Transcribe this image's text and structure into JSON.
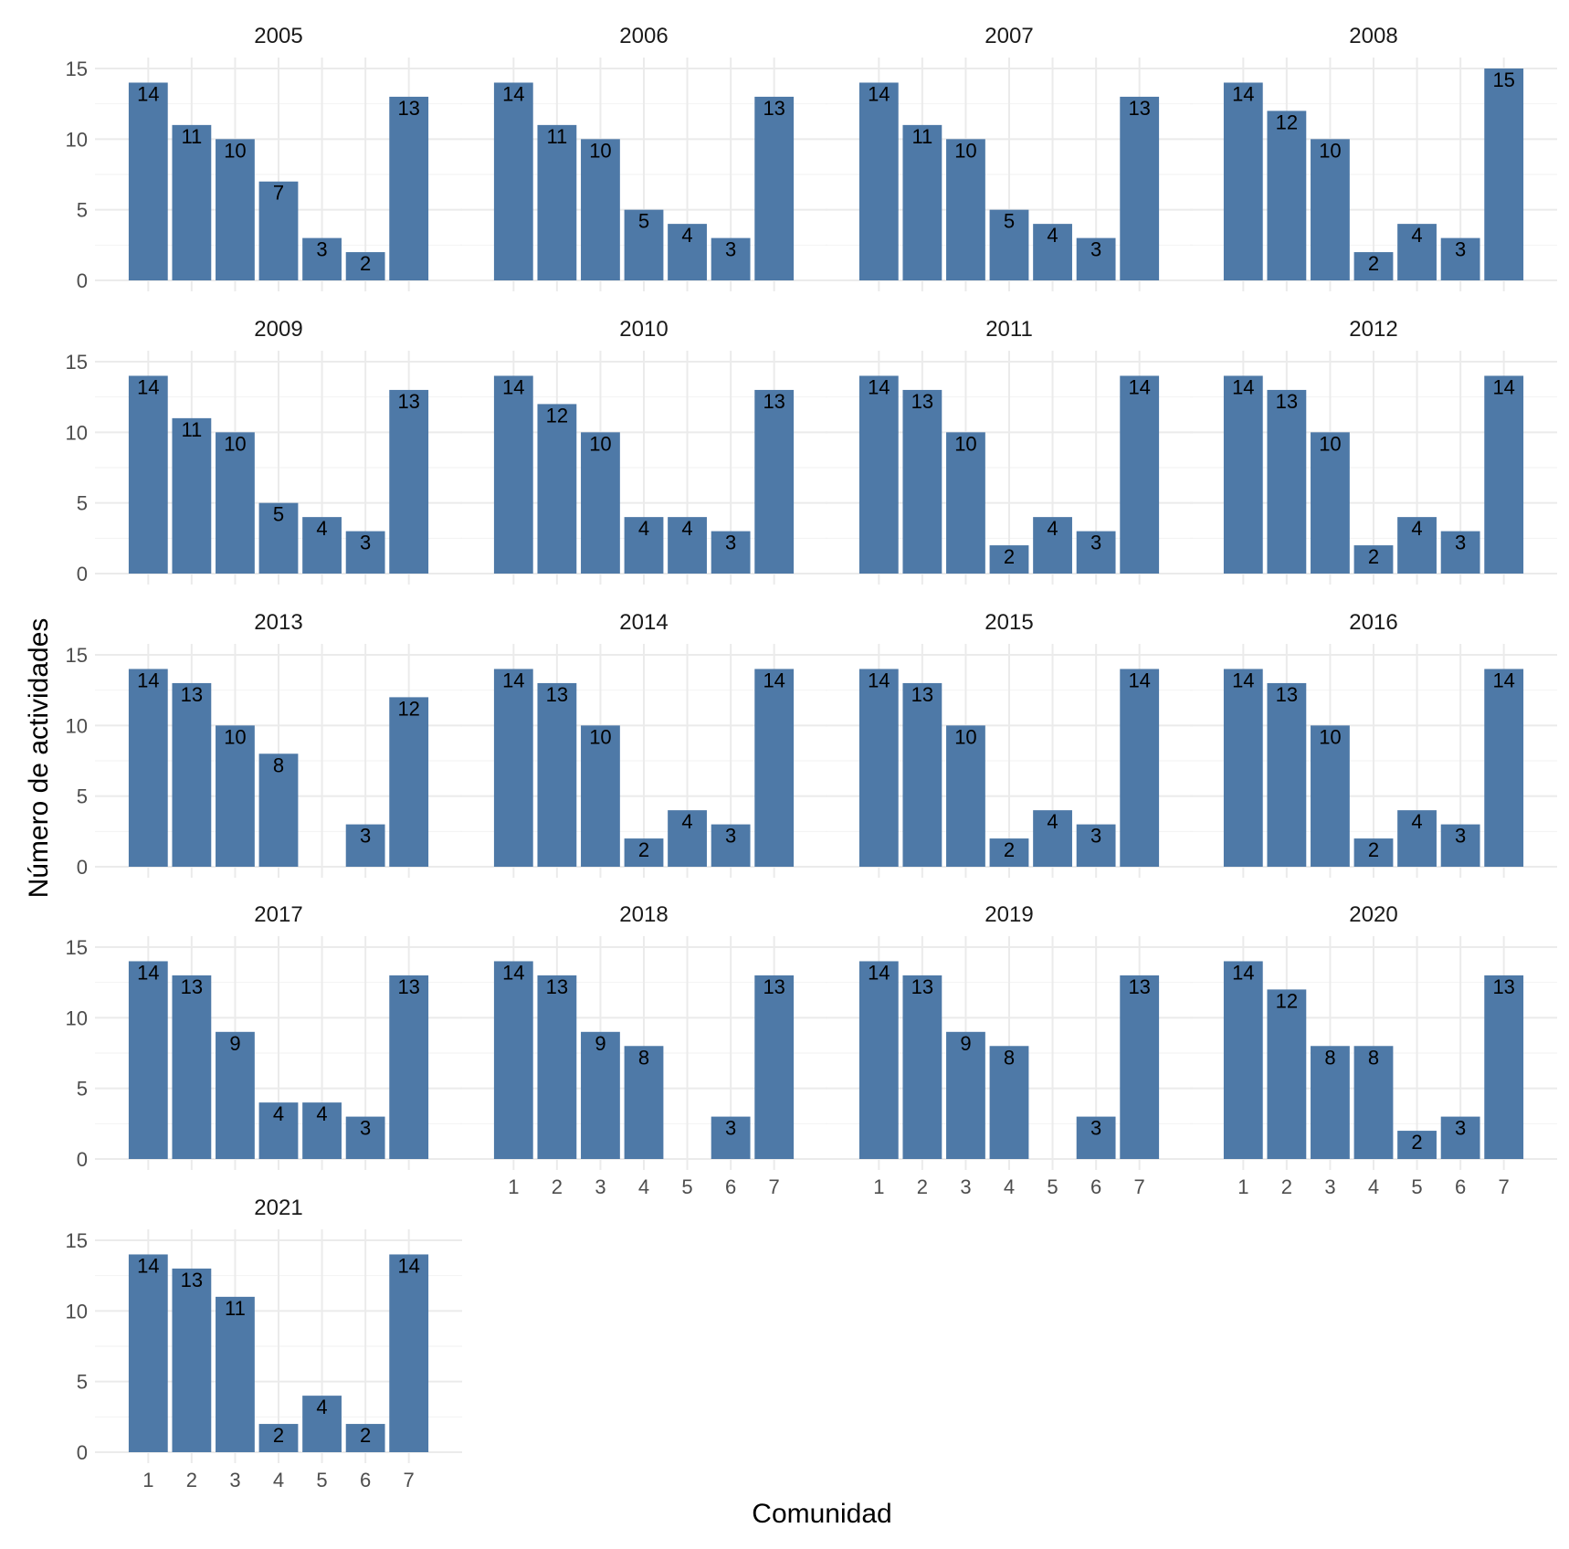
{
  "chart_data": {
    "type": "bar",
    "layout": "facet-grid",
    "xlabel": "Comunidad",
    "ylabel": "Número de actividades",
    "categories": [
      "1",
      "2",
      "3",
      "4",
      "5",
      "6",
      "7"
    ],
    "ylim": [
      0,
      15
    ],
    "yticks": [
      0,
      5,
      10,
      15
    ],
    "grid": true,
    "bar_color": "#4e79a7",
    "panels": [
      {
        "title": "2005",
        "values": [
          14,
          11,
          10,
          7,
          3,
          2,
          13
        ]
      },
      {
        "title": "2006",
        "values": [
          14,
          11,
          10,
          5,
          4,
          3,
          13
        ]
      },
      {
        "title": "2007",
        "values": [
          14,
          11,
          10,
          5,
          4,
          3,
          13
        ]
      },
      {
        "title": "2008",
        "values": [
          14,
          12,
          10,
          2,
          4,
          3,
          15
        ]
      },
      {
        "title": "2009",
        "values": [
          14,
          11,
          10,
          5,
          4,
          3,
          13
        ]
      },
      {
        "title": "2010",
        "values": [
          14,
          12,
          10,
          4,
          4,
          3,
          13
        ]
      },
      {
        "title": "2011",
        "values": [
          14,
          13,
          10,
          2,
          4,
          3,
          14
        ]
      },
      {
        "title": "2012",
        "values": [
          14,
          13,
          10,
          2,
          4,
          3,
          14
        ]
      },
      {
        "title": "2013",
        "values": [
          14,
          13,
          10,
          8,
          null,
          3,
          12
        ]
      },
      {
        "title": "2014",
        "values": [
          14,
          13,
          10,
          2,
          4,
          3,
          14
        ]
      },
      {
        "title": "2015",
        "values": [
          14,
          13,
          10,
          2,
          4,
          3,
          14
        ]
      },
      {
        "title": "2016",
        "values": [
          14,
          13,
          10,
          2,
          4,
          3,
          14
        ]
      },
      {
        "title": "2017",
        "values": [
          14,
          13,
          9,
          4,
          4,
          3,
          13
        ]
      },
      {
        "title": "2018",
        "values": [
          14,
          13,
          9,
          8,
          null,
          3,
          13
        ]
      },
      {
        "title": "2019",
        "values": [
          14,
          13,
          9,
          8,
          null,
          3,
          13
        ]
      },
      {
        "title": "2020",
        "values": [
          14,
          12,
          8,
          8,
          2,
          3,
          13
        ]
      },
      {
        "title": "2021",
        "values": [
          14,
          13,
          11,
          2,
          4,
          2,
          14
        ]
      }
    ]
  }
}
